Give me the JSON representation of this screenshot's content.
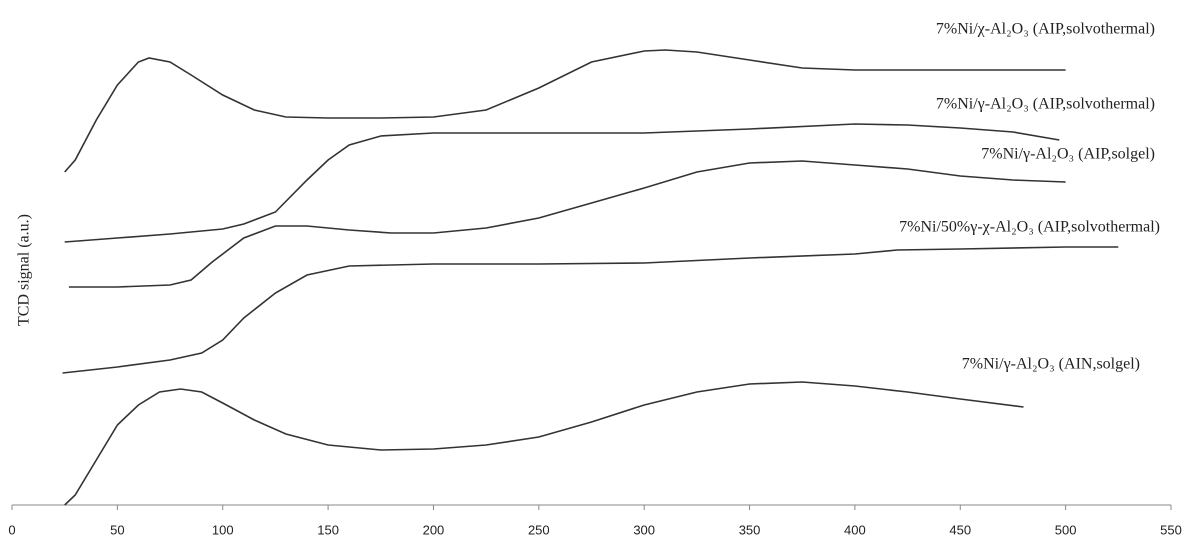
{
  "chart_data": {
    "type": "line",
    "y_label": "TCD signal (a.u.)",
    "xlim": [
      0,
      550
    ],
    "xticks": [
      0,
      50,
      100,
      150,
      200,
      250,
      300,
      350,
      400,
      450,
      500,
      550
    ],
    "ylim": [
      0,
      100
    ],
    "grid": false,
    "series": [
      {
        "name": "7%Ni/χ-Al₂O₃ (AIP,solvothermal)",
        "color": "#333333",
        "x": [
          25,
          30,
          40,
          50,
          60,
          65,
          75,
          85,
          100,
          115,
          130,
          150,
          175,
          200,
          225,
          250,
          275,
          300,
          310,
          325,
          350,
          375,
          400,
          450,
          500
        ],
        "values": [
          66.6,
          69,
          77,
          84,
          88.6,
          89.4,
          88.6,
          86,
          82,
          79,
          77.6,
          77.4,
          77.4,
          77.6,
          79,
          83.4,
          88.6,
          90.8,
          91,
          90.6,
          89,
          87.4,
          87,
          87,
          87
        ]
      },
      {
        "name": "7%Ni/γ-Al₂O₃ (AIP,solvothermal)",
        "color": "#333333",
        "x": [
          25,
          50,
          75,
          100,
          110,
          125,
          140,
          150,
          160,
          175,
          200,
          250,
          300,
          350,
          400,
          425,
          450,
          475,
          497
        ],
        "values": [
          52.6,
          53.4,
          54.2,
          55.2,
          56.2,
          58.6,
          65,
          69,
          72,
          73.8,
          74.4,
          74.4,
          74.4,
          75.2,
          76.2,
          76,
          75.4,
          74.6,
          73
        ]
      },
      {
        "name": "7%Ni/γ-Al₂O₃ (AIP,solgel)",
        "color": "#333333",
        "x": [
          27,
          50,
          75,
          85,
          95,
          110,
          125,
          140,
          160,
          180,
          200,
          225,
          250,
          275,
          300,
          325,
          350,
          375,
          400,
          425,
          450,
          475,
          500
        ],
        "values": [
          43.6,
          43.6,
          44,
          45,
          48.6,
          53.4,
          55.8,
          55.8,
          55,
          54.4,
          54.4,
          55.4,
          57.4,
          60.4,
          63.4,
          66.6,
          68.4,
          68.8,
          68,
          67.2,
          65.8,
          65,
          64.6
        ]
      },
      {
        "name": "7%Ni/50%γ-χ-Al₂O₃ (AIP,solvothermal)",
        "color": "#333333",
        "x": [
          24,
          50,
          75,
          90,
          100,
          110,
          125,
          140,
          160,
          200,
          250,
          300,
          350,
          400,
          420,
          450,
          500,
          525
        ],
        "values": [
          26.4,
          27.6,
          29,
          30.4,
          33,
          37.4,
          42.4,
          46,
          47.8,
          48.2,
          48.2,
          48.4,
          49.4,
          50.2,
          51,
          51.2,
          51.6,
          51.6
        ]
      },
      {
        "name": "7%Ni/γ-Al₂O₃ (AIN,solgel)",
        "color": "#333333",
        "x": [
          25,
          30,
          40,
          50,
          60,
          70,
          80,
          90,
          100,
          115,
          130,
          150,
          175,
          200,
          225,
          250,
          275,
          300,
          325,
          350,
          375,
          400,
          425,
          450,
          480
        ],
        "values": [
          0,
          2,
          9,
          16,
          20,
          22.6,
          23.2,
          22.6,
          20.4,
          17,
          14.2,
          12,
          11,
          11.2,
          12,
          13.6,
          16.6,
          20,
          22.6,
          24.2,
          24.6,
          23.8,
          22.6,
          21.2,
          19.6
        ]
      }
    ]
  }
}
